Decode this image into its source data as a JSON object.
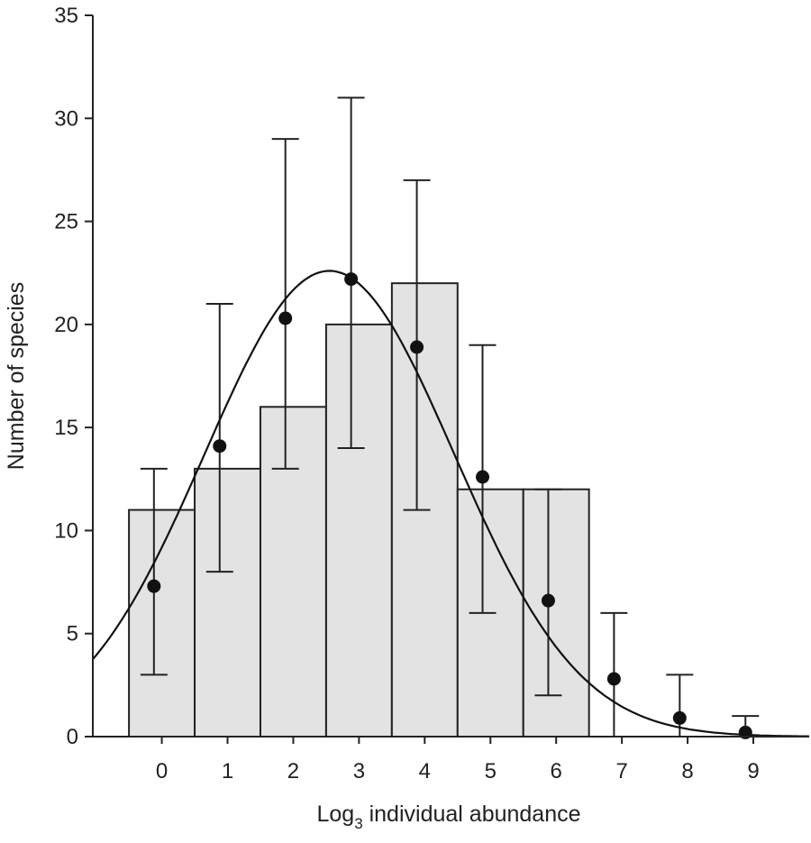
{
  "chart_data": {
    "type": "bar",
    "xlabel": "Log",
    "xlabel_subscript": "3",
    "xlabel_rest": " individual abundance",
    "ylabel": "Number of species",
    "ylim": [
      0,
      35
    ],
    "yticks": [
      0,
      5,
      10,
      15,
      20,
      25,
      30,
      35
    ],
    "xticks": [
      0,
      1,
      2,
      3,
      4,
      5,
      6,
      7,
      8,
      9
    ],
    "xlim": [
      -1.05,
      9.85
    ],
    "bars": {
      "x": [
        0,
        1,
        2,
        3,
        4,
        5,
        6
      ],
      "values": [
        11,
        13,
        16,
        20,
        22,
        12,
        12
      ]
    },
    "points": {
      "x": [
        0,
        1,
        2,
        3,
        4,
        5,
        6,
        7,
        8,
        9
      ],
      "y": [
        7.3,
        14.1,
        20.3,
        22.2,
        18.9,
        12.6,
        6.6,
        2.8,
        0.9,
        0.2
      ],
      "err_low": [
        3,
        8,
        13,
        14,
        11,
        6,
        2,
        0,
        0,
        0
      ],
      "err_high": [
        13,
        21,
        29,
        31,
        27,
        19,
        12,
        6,
        3,
        1
      ]
    },
    "curve": {
      "type": "gaussian",
      "peak": 22.6,
      "mode": 2.55,
      "sd": 1.9
    }
  }
}
